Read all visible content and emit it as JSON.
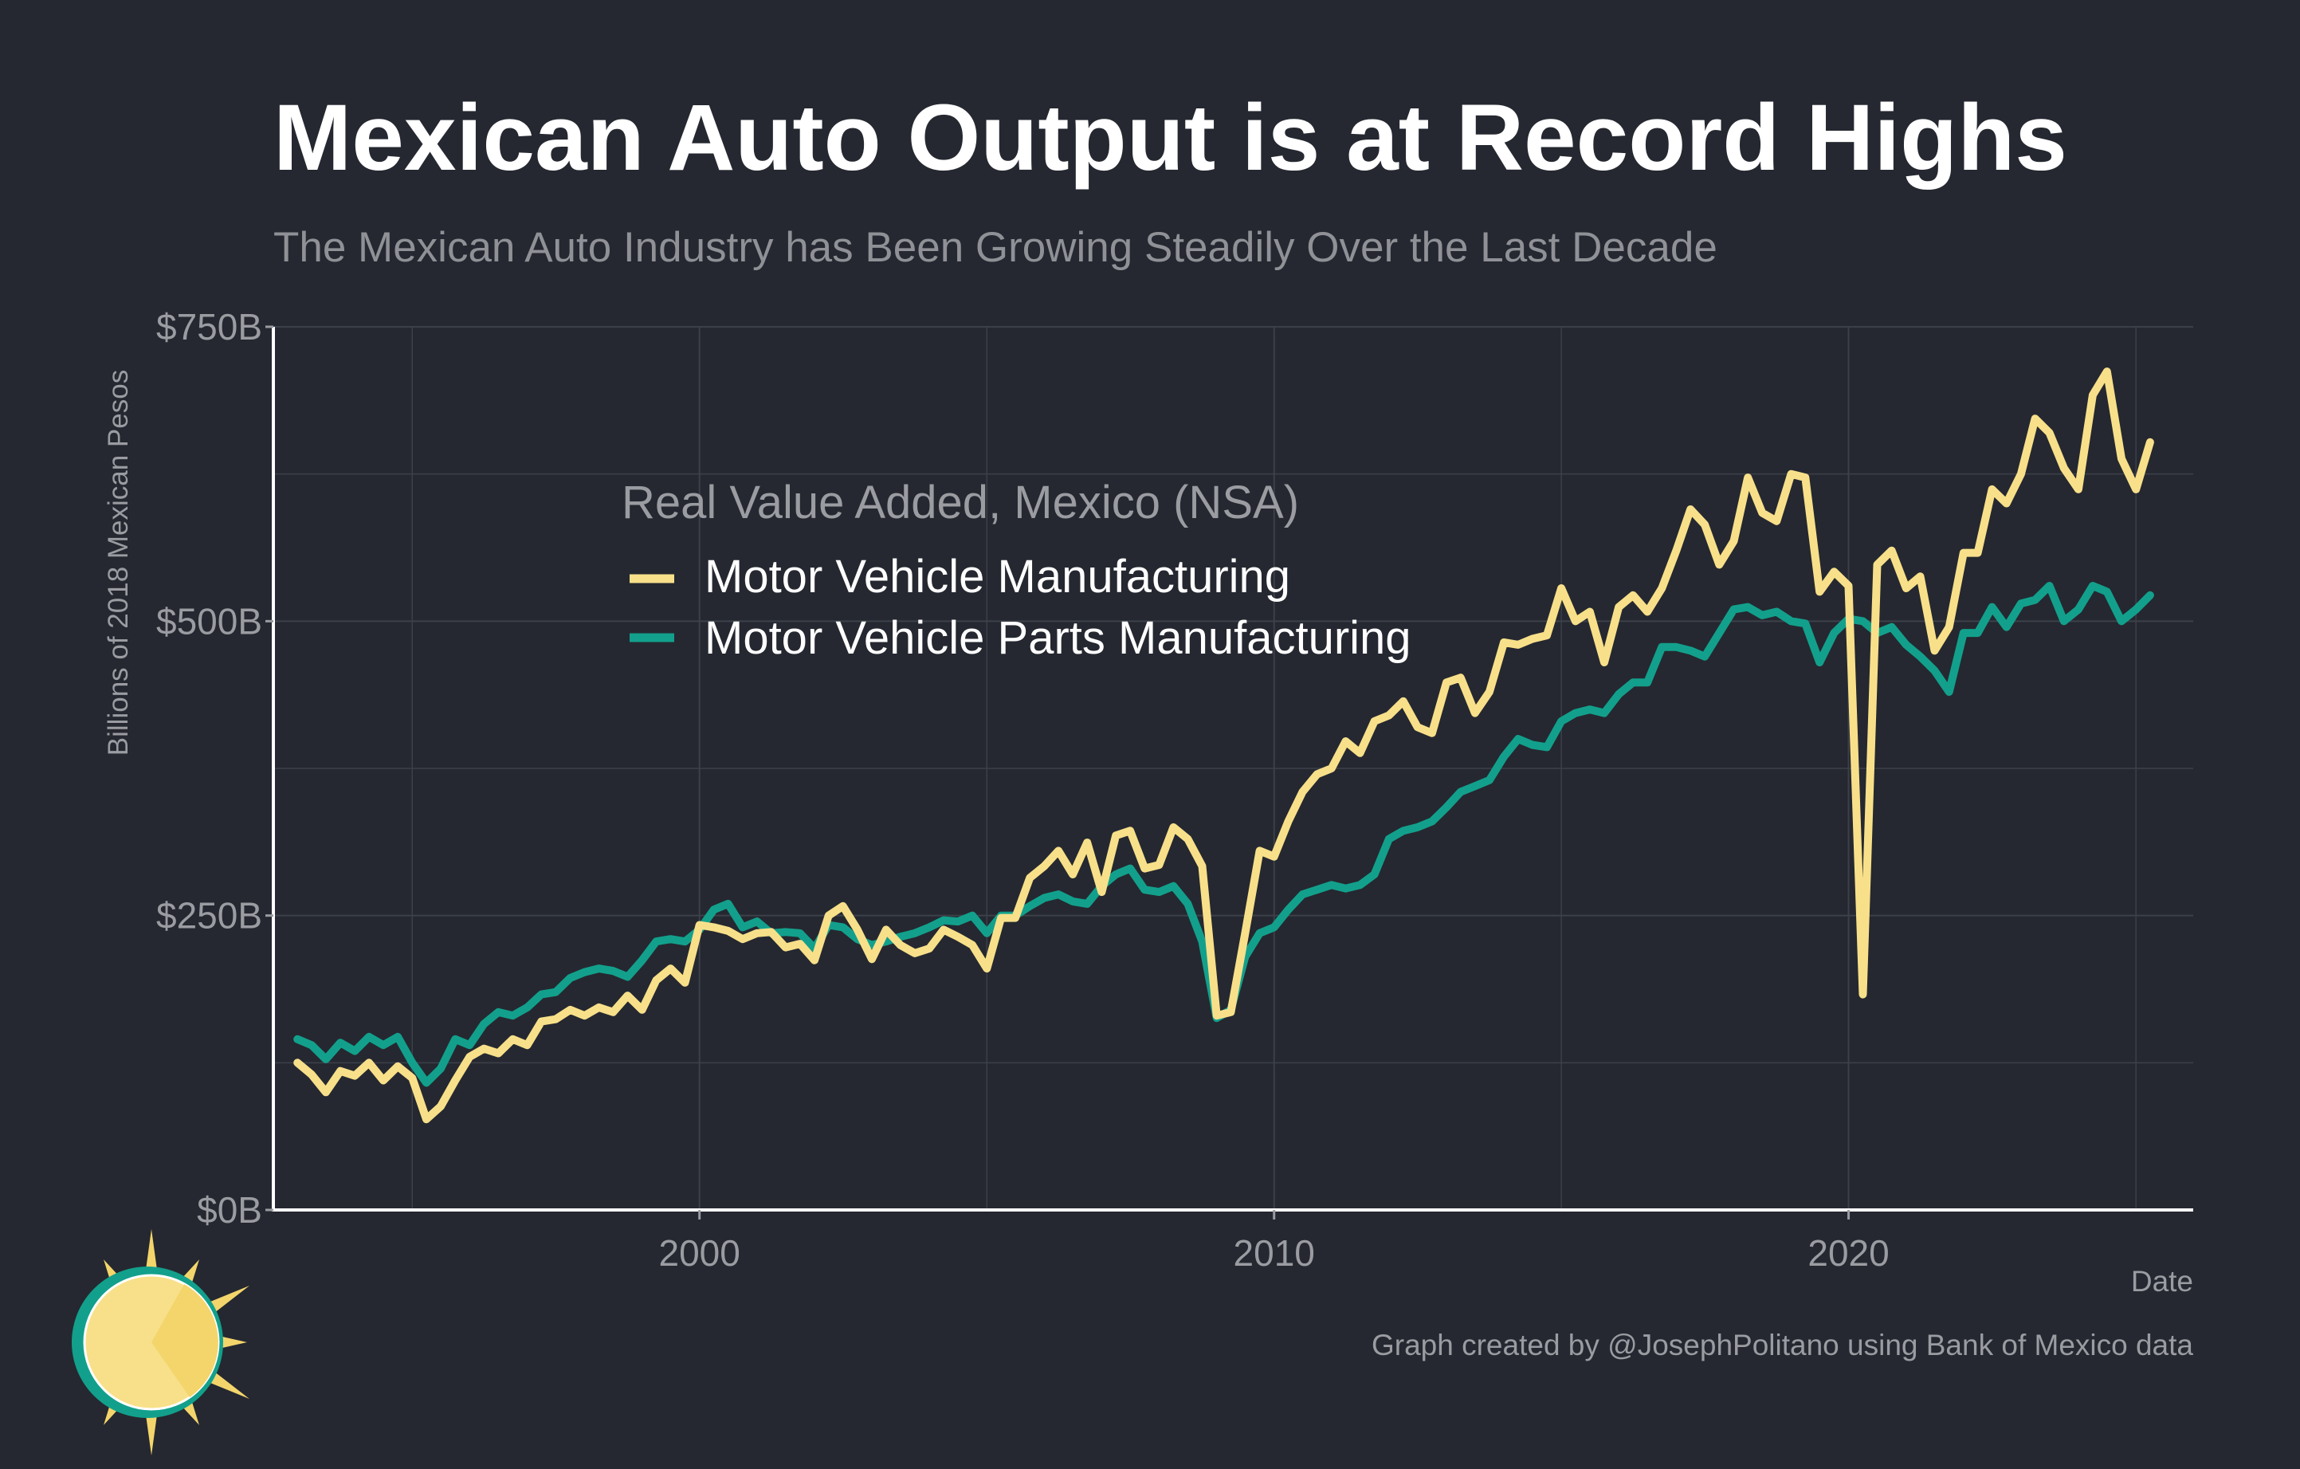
{
  "chart_data": {
    "type": "line",
    "title": "Mexican Auto Output is at Record Highs",
    "subtitle": "The Mexican Auto Industry has Been Growing Steadily Over the Last Decade",
    "xlabel": "Date",
    "ylabel": "Billions of 2018 Mexican Pesos",
    "caption": "Graph created by @JosephPolitano using Bank of Mexico data",
    "legend_title": "Real Value Added, Mexico (NSA)",
    "legend_position": "upper-left-inside",
    "xlim": [
      "1992-08-01",
      "2025-12-31"
    ],
    "ylim": [
      0,
      750
    ],
    "x_ticks": [
      {
        "label": "2000",
        "value": "2000-01-01"
      },
      {
        "label": "2010",
        "value": "2010-01-01"
      },
      {
        "label": "2020",
        "value": "2020-01-01"
      }
    ],
    "y_ticks": [
      {
        "label": "$0B",
        "value": 0
      },
      {
        "label": "$250B",
        "value": 250
      },
      {
        "label": "$500B",
        "value": 500
      },
      {
        "label": "$750B",
        "value": 750
      }
    ],
    "grid": true,
    "series": [
      {
        "name": "Motor Vehicle Manufacturing",
        "color": "#F8E08A",
        "points": [
          [
            "1993-01-01",
            125
          ],
          [
            "1993-04-01",
            115
          ],
          [
            "1993-07-01",
            100
          ],
          [
            "1993-10-01",
            118
          ],
          [
            "1994-01-01",
            114
          ],
          [
            "1994-04-01",
            125
          ],
          [
            "1994-07-01",
            110
          ],
          [
            "1994-10-01",
            122
          ],
          [
            "1995-01-01",
            112
          ],
          [
            "1995-04-01",
            77
          ],
          [
            "1995-07-01",
            88
          ],
          [
            "1995-10-01",
            110
          ],
          [
            "1996-01-01",
            130
          ],
          [
            "1996-04-01",
            137
          ],
          [
            "1996-07-01",
            133
          ],
          [
            "1996-10-01",
            145
          ],
          [
            "1997-01-01",
            140
          ],
          [
            "1997-04-01",
            160
          ],
          [
            "1997-07-01",
            162
          ],
          [
            "1997-10-01",
            170
          ],
          [
            "1998-01-01",
            165
          ],
          [
            "1998-04-01",
            172
          ],
          [
            "1998-07-01",
            168
          ],
          [
            "1998-10-01",
            182
          ],
          [
            "1999-01-01",
            170
          ],
          [
            "1999-04-01",
            195
          ],
          [
            "1999-07-01",
            205
          ],
          [
            "1999-10-01",
            193
          ],
          [
            "2000-01-01",
            242
          ],
          [
            "2000-04-01",
            240
          ],
          [
            "2000-07-01",
            237
          ],
          [
            "2000-10-01",
            230
          ],
          [
            "2001-01-01",
            235
          ],
          [
            "2001-04-01",
            236
          ],
          [
            "2001-07-01",
            223
          ],
          [
            "2001-10-01",
            226
          ],
          [
            "2002-01-01",
            212
          ],
          [
            "2002-04-01",
            250
          ],
          [
            "2002-07-01",
            258
          ],
          [
            "2002-10-01",
            238
          ],
          [
            "2003-01-01",
            213
          ],
          [
            "2003-04-01",
            238
          ],
          [
            "2003-07-01",
            225
          ],
          [
            "2003-10-01",
            218
          ],
          [
            "2004-01-01",
            222
          ],
          [
            "2004-04-01",
            238
          ],
          [
            "2004-07-01",
            232
          ],
          [
            "2004-10-01",
            225
          ],
          [
            "2005-01-01",
            205
          ],
          [
            "2005-04-01",
            248
          ],
          [
            "2005-07-01",
            248
          ],
          [
            "2005-10-01",
            282
          ],
          [
            "2006-01-01",
            292
          ],
          [
            "2006-04-01",
            305
          ],
          [
            "2006-07-01",
            285
          ],
          [
            "2006-10-01",
            312
          ],
          [
            "2007-01-01",
            270
          ],
          [
            "2007-04-01",
            318
          ],
          [
            "2007-07-01",
            322
          ],
          [
            "2007-10-01",
            290
          ],
          [
            "2008-01-01",
            293
          ],
          [
            "2008-04-01",
            325
          ],
          [
            "2008-07-01",
            315
          ],
          [
            "2008-10-01",
            292
          ],
          [
            "2009-01-01",
            165
          ],
          [
            "2009-04-01",
            168
          ],
          [
            "2009-07-01",
            235
          ],
          [
            "2009-10-01",
            305
          ],
          [
            "2010-01-01",
            300
          ],
          [
            "2010-04-01",
            330
          ],
          [
            "2010-07-01",
            355
          ],
          [
            "2010-10-01",
            370
          ],
          [
            "2011-01-01",
            375
          ],
          [
            "2011-04-01",
            398
          ],
          [
            "2011-07-01",
            388
          ],
          [
            "2011-10-01",
            415
          ],
          [
            "2012-01-01",
            420
          ],
          [
            "2012-04-01",
            432
          ],
          [
            "2012-07-01",
            410
          ],
          [
            "2012-10-01",
            405
          ],
          [
            "2013-01-01",
            448
          ],
          [
            "2013-04-01",
            452
          ],
          [
            "2013-07-01",
            422
          ],
          [
            "2013-10-01",
            440
          ],
          [
            "2014-01-01",
            482
          ],
          [
            "2014-04-01",
            480
          ],
          [
            "2014-07-01",
            485
          ],
          [
            "2014-10-01",
            488
          ],
          [
            "2015-01-01",
            528
          ],
          [
            "2015-04-01",
            500
          ],
          [
            "2015-07-01",
            508
          ],
          [
            "2015-10-01",
            465
          ],
          [
            "2016-01-01",
            512
          ],
          [
            "2016-04-01",
            522
          ],
          [
            "2016-07-01",
            508
          ],
          [
            "2016-10-01",
            528
          ],
          [
            "2017-01-01",
            560
          ],
          [
            "2017-04-01",
            595
          ],
          [
            "2017-07-01",
            582
          ],
          [
            "2017-10-01",
            548
          ],
          [
            "2018-01-01",
            568
          ],
          [
            "2018-04-01",
            622
          ],
          [
            "2018-07-01",
            592
          ],
          [
            "2018-10-01",
            585
          ],
          [
            "2019-01-01",
            625
          ],
          [
            "2019-04-01",
            622
          ],
          [
            "2019-07-01",
            525
          ],
          [
            "2019-10-01",
            542
          ],
          [
            "2020-01-01",
            530
          ],
          [
            "2020-04-01",
            183
          ],
          [
            "2020-07-01",
            548
          ],
          [
            "2020-10-01",
            560
          ],
          [
            "2021-01-01",
            528
          ],
          [
            "2021-04-01",
            538
          ],
          [
            "2021-07-01",
            475
          ],
          [
            "2021-10-01",
            495
          ],
          [
            "2022-01-01",
            558
          ],
          [
            "2022-04-01",
            558
          ],
          [
            "2022-07-01",
            612
          ],
          [
            "2022-10-01",
            600
          ],
          [
            "2023-01-01",
            625
          ],
          [
            "2023-04-01",
            672
          ],
          [
            "2023-07-01",
            660
          ],
          [
            "2023-10-01",
            630
          ],
          [
            "2024-01-01",
            612
          ],
          [
            "2024-04-01",
            692
          ],
          [
            "2024-07-01",
            712
          ],
          [
            "2024-10-01",
            638
          ],
          [
            "2025-01-01",
            612
          ],
          [
            "2025-04-01",
            652
          ]
        ]
      },
      {
        "name": "Motor Vehicle Parts Manufacturing",
        "color": "#12A08C",
        "points": [
          [
            "1993-01-01",
            145
          ],
          [
            "1993-04-01",
            140
          ],
          [
            "1993-07-01",
            128
          ],
          [
            "1993-10-01",
            142
          ],
          [
            "1994-01-01",
            135
          ],
          [
            "1994-04-01",
            147
          ],
          [
            "1994-07-01",
            140
          ],
          [
            "1994-10-01",
            147
          ],
          [
            "1995-01-01",
            125
          ],
          [
            "1995-04-01",
            108
          ],
          [
            "1995-07-01",
            120
          ],
          [
            "1995-10-01",
            145
          ],
          [
            "1996-01-01",
            140
          ],
          [
            "1996-04-01",
            158
          ],
          [
            "1996-07-01",
            168
          ],
          [
            "1996-10-01",
            165
          ],
          [
            "1997-01-01",
            172
          ],
          [
            "1997-04-01",
            183
          ],
          [
            "1997-07-01",
            185
          ],
          [
            "1997-10-01",
            197
          ],
          [
            "1998-01-01",
            202
          ],
          [
            "1998-04-01",
            205
          ],
          [
            "1998-07-01",
            203
          ],
          [
            "1998-10-01",
            198
          ],
          [
            "1999-01-01",
            212
          ],
          [
            "1999-04-01",
            228
          ],
          [
            "1999-07-01",
            230
          ],
          [
            "1999-10-01",
            228
          ],
          [
            "2000-01-01",
            238
          ],
          [
            "2000-04-01",
            255
          ],
          [
            "2000-07-01",
            260
          ],
          [
            "2000-10-01",
            240
          ],
          [
            "2001-01-01",
            245
          ],
          [
            "2001-04-01",
            235
          ],
          [
            "2001-07-01",
            236
          ],
          [
            "2001-10-01",
            235
          ],
          [
            "2002-01-01",
            222
          ],
          [
            "2002-04-01",
            242
          ],
          [
            "2002-07-01",
            240
          ],
          [
            "2002-10-01",
            230
          ],
          [
            "2003-01-01",
            225
          ],
          [
            "2003-04-01",
            228
          ],
          [
            "2003-07-01",
            232
          ],
          [
            "2003-10-01",
            235
          ],
          [
            "2004-01-01",
            240
          ],
          [
            "2004-04-01",
            246
          ],
          [
            "2004-07-01",
            245
          ],
          [
            "2004-10-01",
            250
          ],
          [
            "2005-01-01",
            235
          ],
          [
            "2005-04-01",
            250
          ],
          [
            "2005-07-01",
            250
          ],
          [
            "2005-10-01",
            258
          ],
          [
            "2006-01-01",
            265
          ],
          [
            "2006-04-01",
            268
          ],
          [
            "2006-07-01",
            262
          ],
          [
            "2006-10-01",
            260
          ],
          [
            "2007-01-01",
            275
          ],
          [
            "2007-04-01",
            285
          ],
          [
            "2007-07-01",
            290
          ],
          [
            "2007-10-01",
            272
          ],
          [
            "2008-01-01",
            270
          ],
          [
            "2008-04-01",
            275
          ],
          [
            "2008-07-01",
            260
          ],
          [
            "2008-10-01",
            228
          ],
          [
            "2009-01-01",
            163
          ],
          [
            "2009-04-01",
            170
          ],
          [
            "2009-07-01",
            215
          ],
          [
            "2009-10-01",
            235
          ],
          [
            "2010-01-01",
            240
          ],
          [
            "2010-04-01",
            255
          ],
          [
            "2010-07-01",
            268
          ],
          [
            "2010-10-01",
            272
          ],
          [
            "2011-01-01",
            276
          ],
          [
            "2011-04-01",
            273
          ],
          [
            "2011-07-01",
            276
          ],
          [
            "2011-10-01",
            285
          ],
          [
            "2012-01-01",
            315
          ],
          [
            "2012-04-01",
            322
          ],
          [
            "2012-07-01",
            325
          ],
          [
            "2012-10-01",
            330
          ],
          [
            "2013-01-01",
            342
          ],
          [
            "2013-04-01",
            355
          ],
          [
            "2013-07-01",
            360
          ],
          [
            "2013-10-01",
            365
          ],
          [
            "2014-01-01",
            385
          ],
          [
            "2014-04-01",
            400
          ],
          [
            "2014-07-01",
            395
          ],
          [
            "2014-10-01",
            393
          ],
          [
            "2015-01-01",
            415
          ],
          [
            "2015-04-01",
            422
          ],
          [
            "2015-07-01",
            425
          ],
          [
            "2015-10-01",
            422
          ],
          [
            "2016-01-01",
            438
          ],
          [
            "2016-04-01",
            448
          ],
          [
            "2016-07-01",
            448
          ],
          [
            "2016-10-01",
            478
          ],
          [
            "2017-01-01",
            478
          ],
          [
            "2017-04-01",
            475
          ],
          [
            "2017-07-01",
            470
          ],
          [
            "2017-10-01",
            490
          ],
          [
            "2018-01-01",
            510
          ],
          [
            "2018-04-01",
            512
          ],
          [
            "2018-07-01",
            505
          ],
          [
            "2018-10-01",
            508
          ],
          [
            "2019-01-01",
            500
          ],
          [
            "2019-04-01",
            498
          ],
          [
            "2019-07-01",
            465
          ],
          [
            "2019-10-01",
            490
          ],
          [
            "2020-01-01",
            502
          ],
          [
            "2020-04-01",
            500
          ],
          [
            "2020-07-01",
            490
          ],
          [
            "2020-10-01",
            495
          ],
          [
            "2021-01-01",
            480
          ],
          [
            "2021-04-01",
            470
          ],
          [
            "2021-07-01",
            458
          ],
          [
            "2021-10-01",
            440
          ],
          [
            "2022-01-01",
            490
          ],
          [
            "2022-04-01",
            490
          ],
          [
            "2022-07-01",
            512
          ],
          [
            "2022-10-01",
            495
          ],
          [
            "2023-01-01",
            515
          ],
          [
            "2023-04-01",
            518
          ],
          [
            "2023-07-01",
            530
          ],
          [
            "2023-10-01",
            500
          ],
          [
            "2024-01-01",
            510
          ],
          [
            "2024-04-01",
            530
          ],
          [
            "2024-07-01",
            525
          ],
          [
            "2024-10-01",
            500
          ],
          [
            "2025-01-01",
            510
          ],
          [
            "2025-04-01",
            522
          ]
        ]
      }
    ]
  },
  "logo": {
    "name": "sun-logo",
    "colors": [
      "#F8E08A",
      "#12A08C",
      "#F3D56C"
    ]
  },
  "theme": {
    "background": "#252830",
    "grid": "#3C4048",
    "axis": "#FFFFFF",
    "muted": "#9A9CA2"
  }
}
